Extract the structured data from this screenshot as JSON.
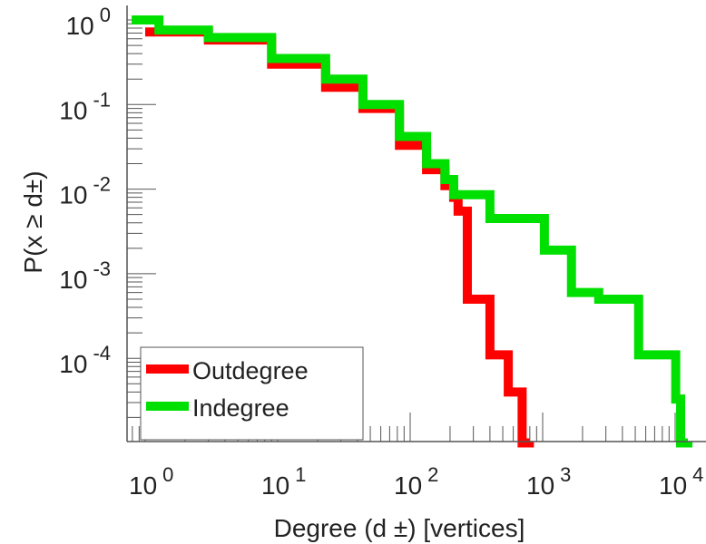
{
  "chart_data": {
    "type": "line",
    "title": "",
    "xlabel": "Degree (d ±) [vertices]",
    "ylabel": "P(x ≥ d±)",
    "xscale": "log",
    "yscale": "log",
    "xlim": [
      0.8,
      14000
    ],
    "ylim": [
      1e-05,
      1.5
    ],
    "x_ticks": [
      {
        "base": "10",
        "exp": "0",
        "v": 1
      },
      {
        "base": "10",
        "exp": "1",
        "v": 10
      },
      {
        "base": "10",
        "exp": "2",
        "v": 100
      },
      {
        "base": "10",
        "exp": "3",
        "v": 1000
      },
      {
        "base": "10",
        "exp": "4",
        "v": 10000
      }
    ],
    "y_ticks": [
      {
        "base": "10",
        "exp": "0",
        "v": 1
      },
      {
        "base": "10",
        "exp": "-1",
        "v": 0.1
      },
      {
        "base": "10",
        "exp": "-2",
        "v": 0.01
      },
      {
        "base": "10",
        "exp": "-3",
        "v": 0.001
      },
      {
        "base": "10",
        "exp": "-4",
        "v": 0.0001
      }
    ],
    "legend_position": "bottom-left",
    "series": [
      {
        "name": "Outdegree",
        "color": "#ff0000",
        "x": [
          1,
          3,
          9,
          23,
          44,
          83,
          133,
          183,
          213,
          230,
          270,
          400,
          550,
          700
        ],
        "y": [
          0.72,
          0.58,
          0.3,
          0.16,
          0.09,
          0.033,
          0.017,
          0.011,
          0.008,
          0.0055,
          0.0005,
          0.00011,
          4e-05,
          1e-05
        ]
      },
      {
        "name": "Indegree",
        "color": "#00e000",
        "x": [
          0.79,
          1.27,
          3,
          9,
          23,
          44,
          83,
          133,
          183,
          213,
          400,
          1030,
          1650,
          2650,
          5300,
          10100,
          11000
        ],
        "y": [
          1.0,
          0.76,
          0.62,
          0.35,
          0.2,
          0.1,
          0.042,
          0.02,
          0.013,
          0.0086,
          0.0045,
          0.0019,
          0.0006,
          0.0005,
          0.00011,
          3.3e-05,
          1e-05
        ]
      }
    ]
  }
}
